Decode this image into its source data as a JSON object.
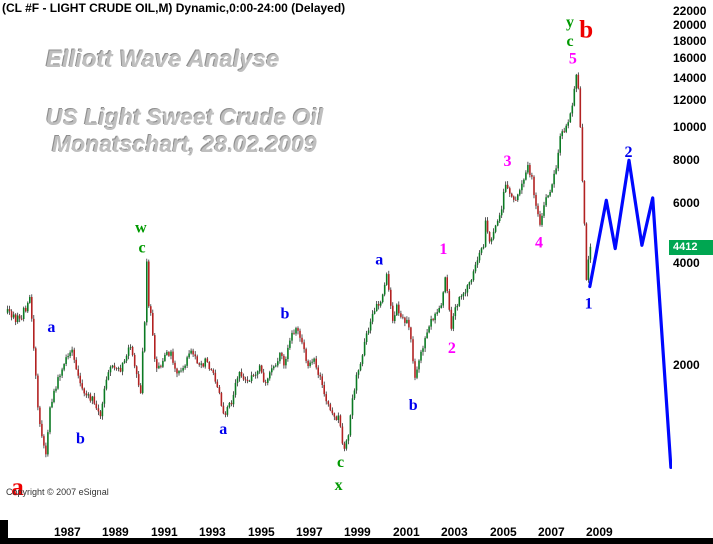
{
  "window": {
    "title": "(CL #F - LIGHT CRUDE OIL,M) Dynamic,0:00-24:00 (Delayed)"
  },
  "watermark": {
    "line1": "Elliott Wave Analyse",
    "line2": "US Light Sweet Crude Oil",
    "line3": "Monatschart, 28.02.2009"
  },
  "copyright": "Copyright © 2007 eSignal",
  "price_tag": {
    "label": "4412",
    "color": "#00a651"
  },
  "colors": {
    "up": "#0b7a23",
    "down": "#b22222",
    "wick": "#111111",
    "projection": "#0008ff"
  },
  "axis": {
    "y_ticks": [
      "22000",
      "20000",
      "18000",
      "16000",
      "14000",
      "12000",
      "10000",
      "8000",
      "6000",
      "4000",
      "2000"
    ],
    "x_ticks": [
      "1987",
      "1989",
      "1991",
      "1993",
      "1995",
      "1997",
      "1999",
      "2001",
      "2003",
      "2005",
      "2007",
      "2009"
    ]
  },
  "chart_data": {
    "type": "candlestick",
    "title": "US Light Sweet Crude Oil, monthly (Elliott wave count), delayed, last = 44.12",
    "x_unit": "year",
    "y_unit": "USD/barrel (axis shows ticks = USD x 100)",
    "y_scale": "log",
    "x_range": [
      1985.0,
      2012.5
    ],
    "y_range_usd": [
      7,
      230
    ],
    "grid": false,
    "last_price": 44.12,
    "monthly_close_waypoints": [
      [
        1985.042,
        28.5
      ],
      [
        1985.292,
        27.5
      ],
      [
        1985.542,
        27.2
      ],
      [
        1985.792,
        29.5
      ],
      [
        1985.958,
        31
      ],
      [
        1986.125,
        22.5
      ],
      [
        1986.292,
        15
      ],
      [
        1986.458,
        12.2
      ],
      [
        1986.625,
        10.8
      ],
      [
        1986.792,
        14.8
      ],
      [
        1986.958,
        16.8
      ],
      [
        1987.208,
        18.6
      ],
      [
        1987.542,
        21.4
      ],
      [
        1987.708,
        22.3
      ],
      [
        1987.958,
        18.2
      ],
      [
        1988.208,
        16.6
      ],
      [
        1988.542,
        15.9
      ],
      [
        1988.875,
        13.8
      ],
      [
        1989.042,
        17.2
      ],
      [
        1989.375,
        20.4
      ],
      [
        1989.708,
        19.2
      ],
      [
        1989.958,
        21.6
      ],
      [
        1990.125,
        22.6
      ],
      [
        1990.292,
        19.4
      ],
      [
        1990.542,
        16.8
      ],
      [
        1990.708,
        26
      ],
      [
        1990.792,
        40.5
      ],
      [
        1990.875,
        30
      ],
      [
        1990.958,
        28
      ],
      [
        1991.125,
        20.5
      ],
      [
        1991.292,
        19.6
      ],
      [
        1991.542,
        21.4
      ],
      [
        1991.792,
        22
      ],
      [
        1991.958,
        19.3
      ],
      [
        1992.292,
        19.4
      ],
      [
        1992.542,
        21.9
      ],
      [
        1992.792,
        21.4
      ],
      [
        1992.958,
        19.9
      ],
      [
        1993.208,
        20.4
      ],
      [
        1993.542,
        18.9
      ],
      [
        1993.792,
        16.8
      ],
      [
        1993.958,
        14.2
      ],
      [
        1994.292,
        15.4
      ],
      [
        1994.625,
        19.4
      ],
      [
        1994.875,
        17.7
      ],
      [
        1995.208,
        18.6
      ],
      [
        1995.458,
        19.6
      ],
      [
        1995.708,
        17.4
      ],
      [
        1995.958,
        19.2
      ],
      [
        1996.292,
        21.6
      ],
      [
        1996.458,
        20.2
      ],
      [
        1996.792,
        24.6
      ],
      [
        1996.958,
        25.9
      ],
      [
        1997.125,
        23.8
      ],
      [
        1997.458,
        19.9
      ],
      [
        1997.708,
        20.8
      ],
      [
        1997.958,
        18.3
      ],
      [
        1998.208,
        15.9
      ],
      [
        1998.458,
        14.6
      ],
      [
        1998.708,
        13.9
      ],
      [
        1998.958,
        11.1
      ],
      [
        1999.125,
        12.4
      ],
      [
        1999.375,
        17.2
      ],
      [
        1999.708,
        21.7
      ],
      [
        1999.958,
        25.6
      ],
      [
        2000.208,
        29.2
      ],
      [
        2000.458,
        30.4
      ],
      [
        2000.708,
        36.5
      ],
      [
        2000.792,
        33.1
      ],
      [
        2000.958,
        27.4
      ],
      [
        2001.125,
        29.6
      ],
      [
        2001.375,
        27.4
      ],
      [
        2001.625,
        26.4
      ],
      [
        2001.875,
        18
      ],
      [
        2001.958,
        19.8
      ],
      [
        2002.208,
        22.2
      ],
      [
        2002.458,
        26.2
      ],
      [
        2002.708,
        28.4
      ],
      [
        2002.958,
        29.4
      ],
      [
        2003.125,
        35.9
      ],
      [
        2003.375,
        26.2
      ],
      [
        2003.625,
        30.4
      ],
      [
        2003.958,
        32.5
      ],
      [
        2004.208,
        36.2
      ],
      [
        2004.458,
        40.2
      ],
      [
        2004.708,
        45
      ],
      [
        2004.792,
        53.1
      ],
      [
        2004.958,
        45.6
      ],
      [
        2005.125,
        48.3
      ],
      [
        2005.292,
        53.6
      ],
      [
        2005.458,
        58
      ],
      [
        2005.625,
        69
      ],
      [
        2005.792,
        64.2
      ],
      [
        2005.958,
        60.3
      ],
      [
        2006.125,
        63.4
      ],
      [
        2006.292,
        68.2
      ],
      [
        2006.542,
        77
      ],
      [
        2006.708,
        70.2
      ],
      [
        2006.875,
        58.6
      ],
      [
        2007.042,
        51.2
      ],
      [
        2007.208,
        60.1
      ],
      [
        2007.458,
        65.3
      ],
      [
        2007.625,
        72.1
      ],
      [
        2007.792,
        83
      ],
      [
        2007.875,
        94.4
      ],
      [
        2007.958,
        96
      ],
      [
        2008.042,
        99.1
      ],
      [
        2008.208,
        105.2
      ],
      [
        2008.375,
        118.5
      ],
      [
        2008.458,
        127.4
      ],
      [
        2008.542,
        145
      ],
      [
        2008.625,
        133.2
      ],
      [
        2008.708,
        100.5
      ],
      [
        2008.792,
        68.1
      ],
      [
        2008.875,
        52
      ],
      [
        2008.958,
        36
      ],
      [
        2009.042,
        40
      ],
      [
        2009.125,
        44.12
      ]
    ],
    "projection_line": [
      [
        2009.1,
        34
      ],
      [
        2009.78,
        61
      ],
      [
        2010.15,
        44
      ],
      [
        2010.72,
        80
      ],
      [
        2011.25,
        45
      ],
      [
        2011.7,
        62
      ],
      [
        2012.45,
        10
      ]
    ],
    "wave_labels": [
      {
        "text": "a",
        "color": "#ee0000",
        "year": 1985.45,
        "price": 8.8,
        "size": 25
      },
      {
        "text": "a",
        "color": "#0000ee",
        "year": 1986.85,
        "price": 26,
        "size": 16
      },
      {
        "text": "b",
        "color": "#0000ee",
        "year": 1988.05,
        "price": 12.2,
        "size": 16
      },
      {
        "text": "w",
        "color": "#009900",
        "year": 1990.55,
        "price": 51,
        "size": 16
      },
      {
        "text": "c",
        "color": "#009900",
        "year": 1990.6,
        "price": 44.5,
        "size": 16
      },
      {
        "text": "a",
        "color": "#0000ee",
        "year": 1993.95,
        "price": 13,
        "size": 16
      },
      {
        "text": "b",
        "color": "#0000ee",
        "year": 1996.5,
        "price": 28.5,
        "size": 16
      },
      {
        "text": "c",
        "color": "#009900",
        "year": 1998.8,
        "price": 10.4,
        "size": 16
      },
      {
        "text": "x",
        "color": "#009900",
        "year": 1998.72,
        "price": 8.9,
        "size": 16
      },
      {
        "text": "a",
        "color": "#0000ee",
        "year": 2000.4,
        "price": 41,
        "size": 16
      },
      {
        "text": "b",
        "color": "#0000ee",
        "year": 2001.8,
        "price": 15.3,
        "size": 16
      },
      {
        "text": "1",
        "color": "#ff00ff",
        "year": 2003.05,
        "price": 44,
        "size": 16
      },
      {
        "text": "2",
        "color": "#ff00ff",
        "year": 2003.4,
        "price": 22.5,
        "size": 16
      },
      {
        "text": "3",
        "color": "#ff00ff",
        "year": 2005.7,
        "price": 80,
        "size": 16
      },
      {
        "text": "4",
        "color": "#ff00ff",
        "year": 2007.0,
        "price": 46,
        "size": 16
      },
      {
        "text": "5",
        "color": "#ff00ff",
        "year": 2008.4,
        "price": 160,
        "size": 16
      },
      {
        "text": "y",
        "color": "#009900",
        "year": 2008.28,
        "price": 205,
        "size": 16
      },
      {
        "text": "c",
        "color": "#009900",
        "year": 2008.28,
        "price": 180,
        "size": 16
      },
      {
        "text": "b",
        "color": "#ee0000",
        "year": 2008.95,
        "price": 195,
        "size": 25
      },
      {
        "text": "1",
        "color": "#0000ee",
        "year": 2009.05,
        "price": 30.5,
        "size": 16
      },
      {
        "text": "2",
        "color": "#0000ee",
        "year": 2010.7,
        "price": 85,
        "size": 16
      }
    ]
  }
}
